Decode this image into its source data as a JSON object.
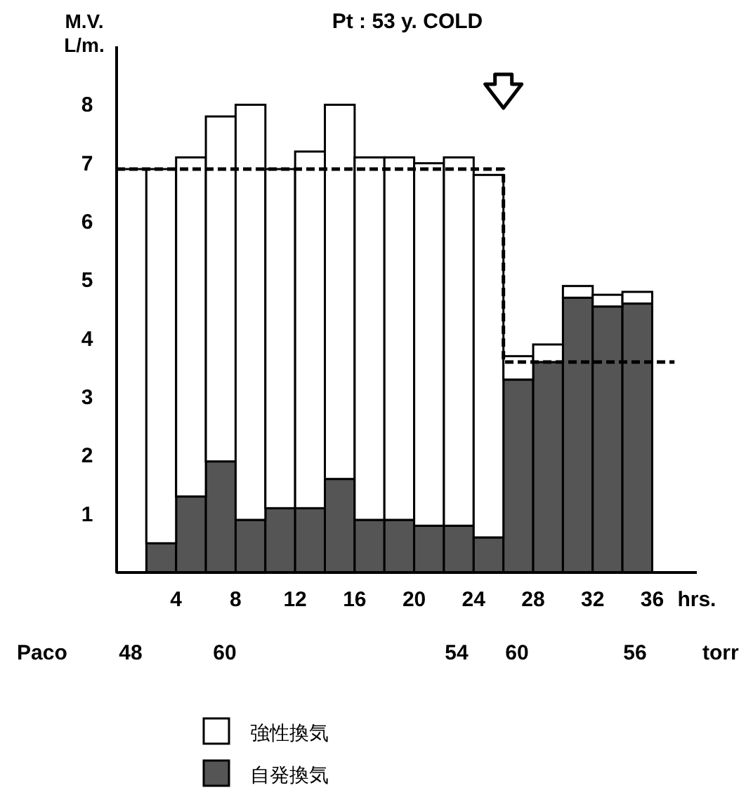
{
  "chart_data": {
    "type": "bar",
    "stacked": true,
    "title": "Pt : 53 y. COLD",
    "ylabel": "M.V. L/m.",
    "xlabel": "hrs.",
    "x": [
      1,
      3,
      5,
      7,
      9,
      11,
      13,
      15,
      17,
      19,
      21,
      23,
      25,
      27,
      29,
      31,
      33,
      35
    ],
    "series": [
      {
        "name": "自発換気",
        "color": "#555555",
        "values": [
          0,
          0.5,
          1.3,
          1.9,
          0.9,
          1.1,
          1.1,
          1.6,
          0.9,
          0.9,
          0.8,
          0.8,
          0.6,
          3.3,
          3.6,
          4.7,
          4.55,
          4.6
        ]
      },
      {
        "name": "強性換気",
        "color": "#ffffff",
        "values": [
          6.9,
          6.4,
          5.8,
          5.9,
          7.1,
          5.8,
          6.1,
          6.4,
          6.2,
          6.2,
          6.2,
          6.3,
          6.2,
          0.4,
          0.3,
          0.2,
          0.2,
          0.2
        ]
      },
      {
        "type": "line",
        "color": "#000000",
        "line_style": "dashed",
        "x": [
          0,
          26,
          26,
          37.5
        ],
        "values": [
          6.9,
          6.9,
          3.6,
          3.6
        ]
      }
    ],
    "xlim": [
      0,
      39
    ],
    "xticks": [
      4,
      8,
      12,
      16,
      20,
      24,
      28,
      32,
      36
    ],
    "ylim": [
      0,
      9
    ],
    "yticks": [
      1,
      2,
      3,
      4,
      5,
      6,
      7,
      8
    ],
    "legend": "bottom",
    "annotations": [
      "Paco",
      "48",
      "60",
      "54",
      "60",
      "56",
      "torr"
    ]
  }
}
